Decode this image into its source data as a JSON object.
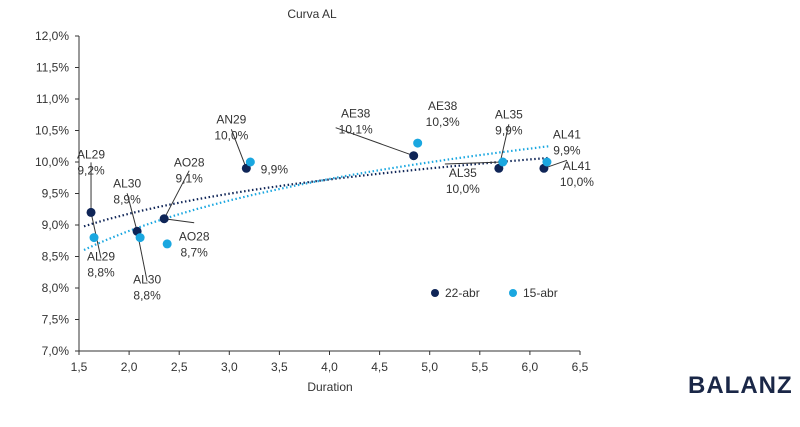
{
  "brand": {
    "logo_text": "BALANZ"
  },
  "colors": {
    "dark": "#0f2557",
    "light": "#1aa7e0"
  },
  "chart_data": {
    "type": "scatter",
    "title": "Curva AL",
    "xlabel": "Duration",
    "ylabel": "",
    "xlim": [
      1.5,
      6.5
    ],
    "ylim": [
      7.0,
      12.0
    ],
    "x_ticks": [
      "1,5",
      "2,0",
      "2,5",
      "3,0",
      "3,5",
      "4,0",
      "4,5",
      "5,0",
      "5,5",
      "6,0",
      "6,5"
    ],
    "y_ticks": [
      "7,0%",
      "7,5%",
      "8,0%",
      "8,5%",
      "9,0%",
      "9,5%",
      "10,0%",
      "10,5%",
      "11,0%",
      "11,5%",
      "12,0%"
    ],
    "legend_position": "bottom-right",
    "grid": false,
    "series": [
      {
        "name": "22-abr",
        "color": "#0f2557",
        "trendline": "logarithmic, dotted",
        "points": [
          {
            "bond": "AL29",
            "x": 1.62,
            "y": 9.2,
            "label": "9,2%"
          },
          {
            "bond": "AL30",
            "x": 2.08,
            "y": 8.9,
            "label": "8,9%"
          },
          {
            "bond": "AO28",
            "x": 2.35,
            "y": 9.1,
            "label": "9,1%"
          },
          {
            "bond": "AN29",
            "x": 3.17,
            "y": 9.9,
            "label": "9,9%"
          },
          {
            "bond": "AE38",
            "x": 4.84,
            "y": 10.1,
            "label": "10,1%"
          },
          {
            "bond": "AL35",
            "x": 5.69,
            "y": 9.9,
            "label": "9,9%"
          },
          {
            "bond": "AL41",
            "x": 6.14,
            "y": 9.9,
            "label": "9,9%"
          }
        ]
      },
      {
        "name": "15-abr",
        "color": "#1aa7e0",
        "trendline": "logarithmic, dotted",
        "points": [
          {
            "bond": "AL29",
            "x": 1.65,
            "y": 8.8,
            "label": "8,8%"
          },
          {
            "bond": "AL30",
            "x": 2.11,
            "y": 8.8,
            "label": "8,8%"
          },
          {
            "bond": "AO28",
            "x": 2.38,
            "y": 8.7,
            "label": "8,7%"
          },
          {
            "bond": "AN29",
            "x": 3.21,
            "y": 10.0,
            "label": "10,0%"
          },
          {
            "bond": "AE38",
            "x": 4.88,
            "y": 10.3,
            "label": "10,3%"
          },
          {
            "bond": "AL35",
            "x": 5.73,
            "y": 10.0,
            "label": "10,0%"
          },
          {
            "bond": "AL41",
            "x": 6.17,
            "y": 10.0,
            "label": "10,0%"
          }
        ]
      }
    ],
    "annotations": [
      {
        "id": "al29-22",
        "lines": [
          "AL29",
          "9,2%"
        ]
      },
      {
        "id": "al29-15",
        "lines": [
          "AL29",
          "8,8%"
        ]
      },
      {
        "id": "al30-22",
        "lines": [
          "AL30",
          "8,9%"
        ]
      },
      {
        "id": "al30-15",
        "lines": [
          "AL30",
          "8,8%"
        ]
      },
      {
        "id": "ao28-22",
        "lines": [
          "AO28",
          "9,1%"
        ]
      },
      {
        "id": "ao28-15",
        "lines": [
          "AO28",
          "8,7%"
        ]
      },
      {
        "id": "an29-15",
        "lines": [
          "AN29",
          "10,0%"
        ]
      },
      {
        "id": "an29-22",
        "lines": [
          "9,9%"
        ]
      },
      {
        "id": "ae38-22",
        "lines": [
          "AE38",
          "10,1%"
        ]
      },
      {
        "id": "ae38-15",
        "lines": [
          "AE38",
          "10,3%"
        ]
      },
      {
        "id": "al35-22",
        "lines": [
          "AL35",
          "9,9%"
        ]
      },
      {
        "id": "al35-15",
        "lines": [
          "AL35",
          "10,0%"
        ]
      },
      {
        "id": "al41-22",
        "lines": [
          "AL41",
          "9,9%"
        ]
      },
      {
        "id": "al41-15",
        "lines": [
          "AL41",
          "10,0%"
        ]
      }
    ]
  }
}
